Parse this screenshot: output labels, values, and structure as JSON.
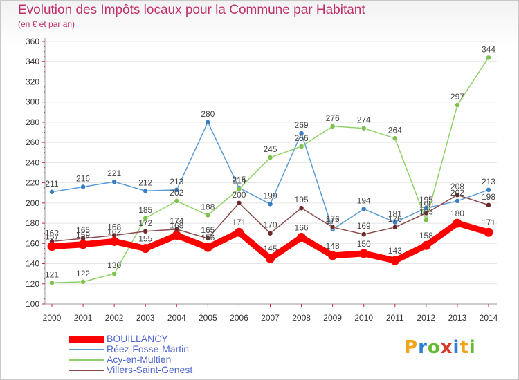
{
  "header": {
    "title": "Evolution des Impôts locaux pour la Commune par Habitant",
    "subtitle": "(en € et par an)"
  },
  "logo": {
    "text": "Proxiti",
    "letters": [
      "P",
      "r",
      "o",
      "x",
      "i",
      "t",
      "i"
    ],
    "colors": [
      "#f2a51a",
      "#2b7fd1",
      "#66bb33",
      "#d63a2b",
      "#2b7fd1",
      "#f2a51a",
      "#66bb33"
    ]
  },
  "chart_data": {
    "type": "line",
    "title": "Evolution des Impôts locaux pour la Commune par Habitant",
    "subtitle": "(en € et par an)",
    "xlabel": "",
    "ylabel": "",
    "ylim": [
      100,
      360
    ],
    "yticks": [
      100,
      120,
      140,
      160,
      180,
      200,
      220,
      240,
      260,
      280,
      300,
      320,
      340,
      360
    ],
    "categories": [
      "2000",
      "2001",
      "2002",
      "2003",
      "2004",
      "2005",
      "2006",
      "2007",
      "2008",
      "2009",
      "2010",
      "2011",
      "2012",
      "2013",
      "2014"
    ],
    "series": [
      {
        "name": "Réez-Fosse-Martin",
        "color": "#5b9bd5",
        "marker": "#3a7fc4",
        "values": [
          211,
          216,
          221,
          212,
          213,
          280,
          215,
          199,
          269,
          174,
          194,
          181,
          195,
          202,
          213
        ],
        "labels": [
          "211",
          "216",
          "221",
          "212",
          "213",
          "280",
          "215",
          "199",
          "269",
          "174",
          "194",
          "181",
          "195",
          "202",
          "213"
        ]
      },
      {
        "name": "Acy-en-Multien",
        "color": "#8fd26a",
        "marker": "#7cc34e",
        "values": [
          121,
          122,
          130,
          185,
          202,
          188,
          214,
          245,
          256,
          276,
          274,
          264,
          183,
          297,
          344
        ],
        "labels": [
          "121",
          "122",
          "130",
          "185",
          "202",
          "188",
          "214",
          "245",
          "256",
          "276",
          "274",
          "264",
          "183",
          "297",
          "344"
        ]
      },
      {
        "name": "Villers-Saint-Genest",
        "color": "#8b4a4a",
        "marker": "#6e2a2a",
        "values": [
          162,
          165,
          168,
          172,
          174,
          165,
          200,
          170,
          195,
          176,
          169,
          176,
          190,
          208,
          198
        ],
        "labels": [
          "162",
          "165",
          "168",
          "172",
          "174",
          "165",
          "200",
          "170",
          "195",
          "176",
          "169",
          "176",
          "190",
          "208",
          "198"
        ]
      },
      {
        "name": "BOUILLANCY",
        "color": "#ff0000",
        "marker": "#ff0000",
        "values": [
          157,
          159,
          162,
          155,
          168,
          156,
          171,
          145,
          166,
          148,
          150,
          143,
          158,
          180,
          171
        ],
        "labels": [
          "157",
          "159",
          "162",
          "155",
          "168",
          "156",
          "171",
          "145",
          "166",
          "148",
          "150",
          "143",
          "158",
          "180",
          "171"
        ]
      }
    ],
    "legend": {
      "position": "bottom-left",
      "entries": [
        "BOUILLANCY",
        "Réez-Fosse-Martin",
        "Acy-en-Multien",
        "Villers-Saint-Genest"
      ]
    }
  }
}
